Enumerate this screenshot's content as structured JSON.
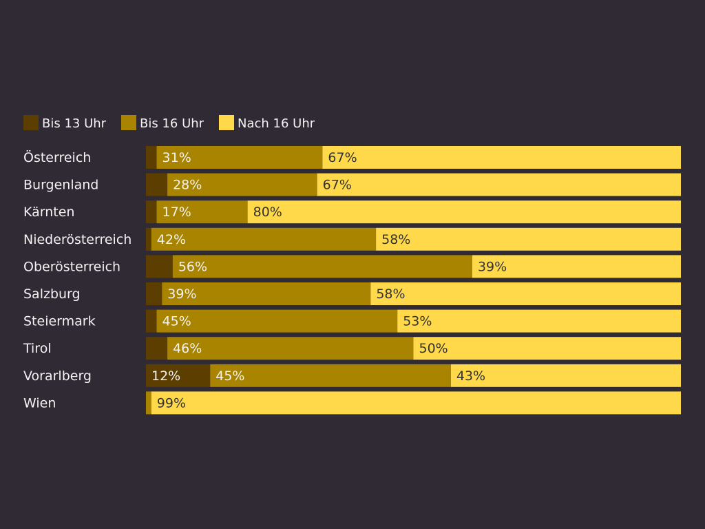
{
  "chart_data": {
    "type": "bar",
    "orientation": "horizontal",
    "stacked": true,
    "stack_total": 100,
    "unit": "%",
    "xlim": [
      0,
      100
    ],
    "grid": false,
    "legend_position": "top-left",
    "title": "",
    "xlabel": "",
    "ylabel": "",
    "categories": [
      "Österreich",
      "Burgenland",
      "Kärnten",
      "Niederösterreich",
      "Oberösterreich",
      "Salzburg",
      "Steiermark",
      "Tirol",
      "Vorarlberg",
      "Wien"
    ],
    "series": [
      {
        "name": "Bis 13 Uhr",
        "color": "#5c3f00",
        "values": [
          2,
          4,
          2,
          1,
          5,
          3,
          2,
          4,
          12,
          0
        ],
        "labels": [
          null,
          null,
          null,
          null,
          null,
          null,
          null,
          null,
          "12%",
          null
        ]
      },
      {
        "name": "Bis 16 Uhr",
        "color": "#a88400",
        "values": [
          31,
          28,
          17,
          42,
          56,
          39,
          45,
          46,
          45,
          1
        ],
        "labels": [
          "31%",
          "28%",
          "17%",
          "42%",
          "56%",
          "39%",
          "45%",
          "46%",
          "45%",
          null
        ]
      },
      {
        "name": "Nach 16 Uhr",
        "color": "#ffd94a",
        "values": [
          67,
          67,
          80,
          58,
          39,
          58,
          53,
          50,
          43,
          99
        ],
        "labels": [
          "67%",
          "67%",
          "80%",
          "58%",
          "39%",
          "58%",
          "53%",
          "50%",
          "43%",
          "99%"
        ]
      }
    ]
  },
  "colors": {
    "background": "#302a34",
    "text_light": "#f2f2f2",
    "text_dark": "#333333"
  }
}
